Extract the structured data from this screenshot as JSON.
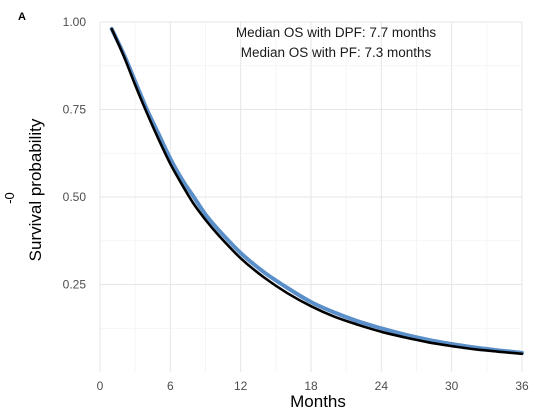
{
  "chart_data": {
    "type": "line",
    "panel_label": "A",
    "xlabel": "Months",
    "ylabel": "Survival probability",
    "y_stray_text": "-0",
    "xlim": [
      0,
      36
    ],
    "ylim": [
      0,
      1
    ],
    "x_ticks": [
      0,
      6,
      12,
      18,
      24,
      30,
      36
    ],
    "y_ticks": [
      "0.25",
      "0.50",
      "0.75",
      "1.00"
    ],
    "y_tick_values": [
      0.25,
      0.5,
      0.75,
      1.0
    ],
    "grid": true,
    "annotations": [
      "Median OS with DPF: 7.7 months",
      "Median OS with PF: 7.3 months"
    ],
    "series": [
      {
        "color": "#5b8fc9",
        "x": [
          1,
          2,
          3,
          4,
          5,
          6,
          7,
          8,
          9,
          10,
          12,
          14,
          16,
          18,
          20,
          22,
          24,
          26,
          28,
          30,
          32,
          34,
          36
        ],
        "y": [
          0.98,
          0.91,
          0.83,
          0.75,
          0.68,
          0.61,
          0.55,
          0.5,
          0.45,
          0.41,
          0.34,
          0.285,
          0.24,
          0.2,
          0.17,
          0.145,
          0.125,
          0.107,
          0.092,
          0.08,
          0.07,
          0.062,
          0.055
        ]
      },
      {
        "color": "#000000",
        "x": [
          1,
          2,
          3,
          4,
          5,
          6,
          7,
          8,
          9,
          10,
          12,
          14,
          16,
          18,
          20,
          22,
          24,
          26,
          28,
          30,
          32,
          34,
          36
        ],
        "y": [
          0.98,
          0.905,
          0.82,
          0.74,
          0.665,
          0.595,
          0.535,
          0.48,
          0.435,
          0.395,
          0.325,
          0.27,
          0.225,
          0.188,
          0.158,
          0.135,
          0.115,
          0.099,
          0.085,
          0.074,
          0.065,
          0.058,
          0.052
        ]
      }
    ]
  }
}
